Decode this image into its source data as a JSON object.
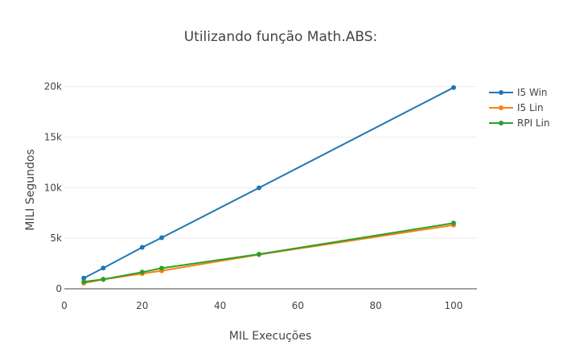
{
  "chart_data": {
    "type": "line",
    "title": "Utilizando função Math.ABS:",
    "xlabel": "MIL Execuções",
    "ylabel": "MILI Segundos",
    "xlim": [
      0,
      106
    ],
    "ylim": [
      0,
      21000
    ],
    "x_ticks": [
      0,
      20,
      40,
      60,
      80,
      100
    ],
    "x_tick_labels": [
      "0",
      "20",
      "40",
      "60",
      "80",
      "100"
    ],
    "y_ticks": [
      0,
      5000,
      10000,
      15000,
      20000
    ],
    "y_tick_labels": [
      "0",
      "5k",
      "10k",
      "15k",
      "20k"
    ],
    "grid": true,
    "legend_position": "top-right",
    "series": [
      {
        "name": "I5 Win",
        "color": "#1f77b4",
        "x": [
          5,
          10,
          20,
          25,
          50,
          100
        ],
        "y": [
          1050,
          2050,
          4100,
          5050,
          9980,
          19900
        ]
      },
      {
        "name": "I5 Lin",
        "color": "#ff7f0e",
        "x": [
          5,
          10,
          20,
          25,
          50,
          100
        ],
        "y": [
          560,
          920,
          1500,
          1780,
          3380,
          6300
        ]
      },
      {
        "name": "RPI Lin",
        "color": "#2ca02c",
        "x": [
          5,
          10,
          20,
          25,
          50,
          100
        ],
        "y": [
          690,
          940,
          1650,
          2040,
          3420,
          6500
        ]
      }
    ]
  }
}
